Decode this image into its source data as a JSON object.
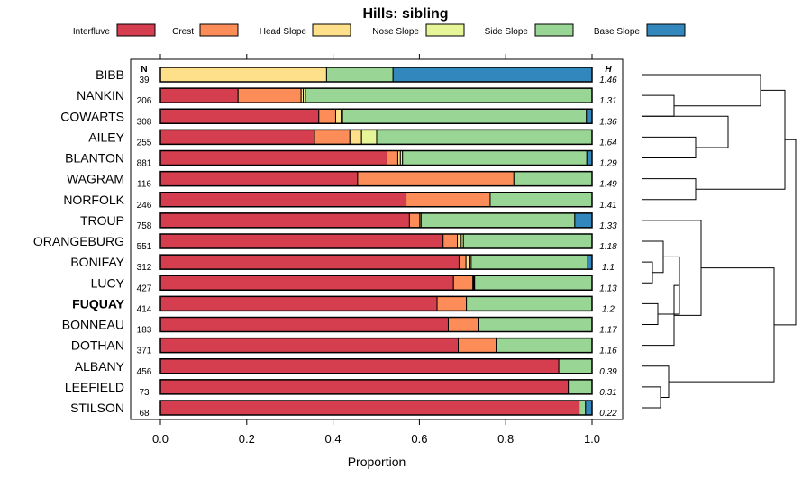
{
  "chart_data": {
    "type": "bar",
    "orientation": "horizontal-stacked",
    "title": "Hills: sibling",
    "xlabel": "Proportion",
    "ylabel": "",
    "xlim": [
      0,
      1
    ],
    "x_ticks": [
      "0.0",
      "0.2",
      "0.4",
      "0.6",
      "0.8",
      "1.0"
    ],
    "n_header": "N",
    "h_header": "H",
    "highlight": "FUQUAY",
    "series": [
      {
        "name": "Interfluve",
        "color": "#D53E4F"
      },
      {
        "name": "Crest",
        "color": "#FC8D59"
      },
      {
        "name": "Head Slope",
        "color": "#FEE08B"
      },
      {
        "name": "Nose Slope",
        "color": "#E6F598"
      },
      {
        "name": "Side Slope",
        "color": "#99D594"
      },
      {
        "name": "Base Slope",
        "color": "#3288BD"
      }
    ],
    "rows": [
      {
        "name": "BIBB",
        "n": "39",
        "h": "1.46",
        "values": [
          0,
          0,
          0.385,
          0,
          0.154,
          0.461
        ]
      },
      {
        "name": "NANKIN",
        "n": "206",
        "h": "1.31",
        "values": [
          0.18,
          0.146,
          0.005,
          0.005,
          0.664,
          0
        ]
      },
      {
        "name": "COWARTS",
        "n": "308",
        "h": "1.36",
        "values": [
          0.367,
          0.039,
          0.013,
          0.003,
          0.565,
          0.013
        ]
      },
      {
        "name": "AILEY",
        "n": "255",
        "h": "1.64",
        "values": [
          0.357,
          0.082,
          0.027,
          0.035,
          0.499,
          0
        ]
      },
      {
        "name": "BLANTON",
        "n": "881",
        "h": "1.29",
        "values": [
          0.525,
          0.025,
          0.006,
          0.005,
          0.427,
          0.012
        ]
      },
      {
        "name": "WAGRAM",
        "n": "116",
        "h": "1.49",
        "values": [
          0.457,
          0.362,
          0,
          0,
          0.181,
          0
        ]
      },
      {
        "name": "NORFOLK",
        "n": "246",
        "h": "1.41",
        "values": [
          0.569,
          0.195,
          0,
          0,
          0.236,
          0
        ]
      },
      {
        "name": "TROUP",
        "n": "758",
        "h": "1.33",
        "values": [
          0.577,
          0.024,
          0.003,
          0,
          0.356,
          0.04
        ]
      },
      {
        "name": "ORANGEBURG",
        "n": "551",
        "h": "1.18",
        "values": [
          0.655,
          0.033,
          0.009,
          0.005,
          0.298,
          0
        ]
      },
      {
        "name": "BONIFAY",
        "n": "312",
        "h": "1.1",
        "values": [
          0.692,
          0.016,
          0.009,
          0.003,
          0.27,
          0.01
        ]
      },
      {
        "name": "LUCY",
        "n": "427",
        "h": "1.13",
        "values": [
          0.679,
          0.045,
          0.002,
          0.002,
          0.272,
          0
        ]
      },
      {
        "name": "FUQUAY",
        "n": "414",
        "h": "1.2",
        "values": [
          0.641,
          0.068,
          0,
          0,
          0.291,
          0
        ]
      },
      {
        "name": "BONNEAU",
        "n": "183",
        "h": "1.17",
        "values": [
          0.667,
          0.071,
          0,
          0,
          0.262,
          0
        ]
      },
      {
        "name": "DOTHAN",
        "n": "371",
        "h": "1.16",
        "values": [
          0.69,
          0.088,
          0,
          0,
          0.222,
          0
        ]
      },
      {
        "name": "ALBANY",
        "n": "456",
        "h": "0.39",
        "values": [
          0.923,
          0,
          0,
          0,
          0.077,
          0
        ]
      },
      {
        "name": "LEEFIELD",
        "n": "73",
        "h": "0.31",
        "values": [
          0.945,
          0,
          0,
          0,
          0.055,
          0
        ]
      },
      {
        "name": "STILSON",
        "n": "68",
        "h": "0.22",
        "values": [
          0.97,
          0,
          0,
          0,
          0.015,
          0.015
        ]
      }
    ],
    "dendrogram": {
      "merges": [
        [
          1,
          2,
          0.6
        ],
        [
          3,
          4,
          1.0
        ],
        [
          2,
          3,
          1.6
        ],
        [
          0,
          1,
          2.2
        ],
        [
          5,
          6,
          1.0
        ],
        [
          0,
          5,
          2.65
        ],
        [
          9,
          10,
          0.2
        ],
        [
          8,
          9,
          0.4
        ],
        [
          11,
          12,
          0.3
        ],
        [
          8,
          11,
          0.7
        ],
        [
          8,
          13,
          0.6
        ],
        [
          7,
          8,
          1.1
        ],
        [
          15,
          16,
          0.35
        ],
        [
          14,
          15,
          0.5
        ],
        [
          7,
          14,
          2.45
        ],
        [
          0,
          7,
          2.85
        ]
      ]
    }
  }
}
